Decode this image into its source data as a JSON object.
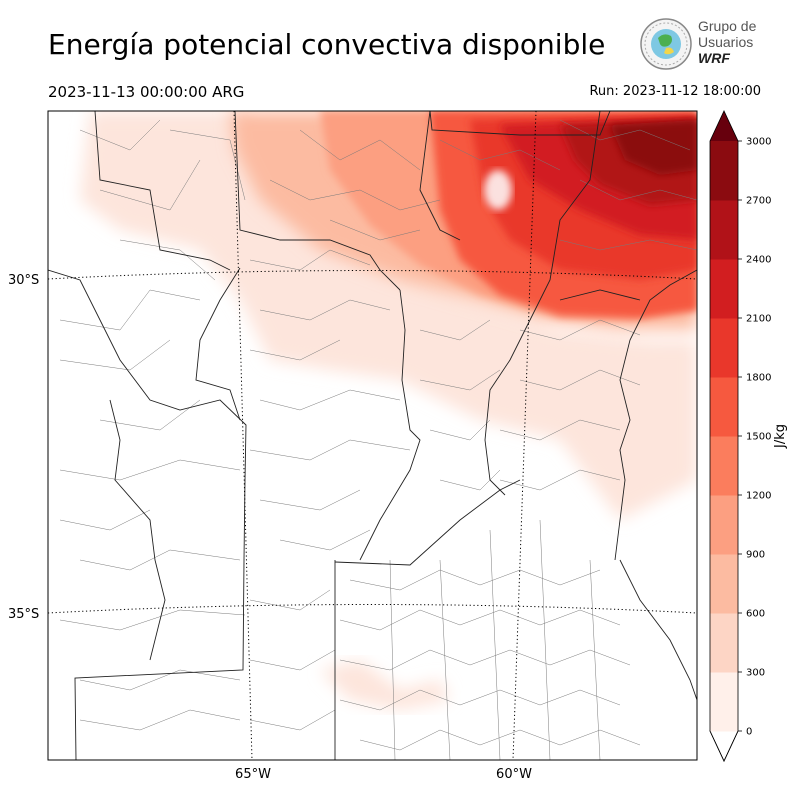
{
  "header": {
    "title": "Energía potencial convectiva disponible",
    "valid_time": "2023-11-13 00:00:00 ARG",
    "run_time": "Run: 2023-11-12 18:00:00"
  },
  "logo": {
    "line1": "Grupo de",
    "line2": "Usuarios",
    "line3": "WRF"
  },
  "map": {
    "lat_labels": [
      "30°S",
      "35°S"
    ],
    "lon_labels": [
      "65°W",
      "60°W"
    ]
  },
  "colorbar": {
    "unit": "J/kg",
    "ticks": [
      "0",
      "300",
      "600",
      "900",
      "1200",
      "1500",
      "1800",
      "2100",
      "2400",
      "2700",
      "3000"
    ],
    "colors": [
      "#fff0ea",
      "#fdd5c5",
      "#fcbba1",
      "#fc9f81",
      "#fb7d5d",
      "#f6593f",
      "#e9372b",
      "#d21e20",
      "#b11218",
      "#8b0b10"
    ],
    "extend_color": "#67000d"
  }
}
